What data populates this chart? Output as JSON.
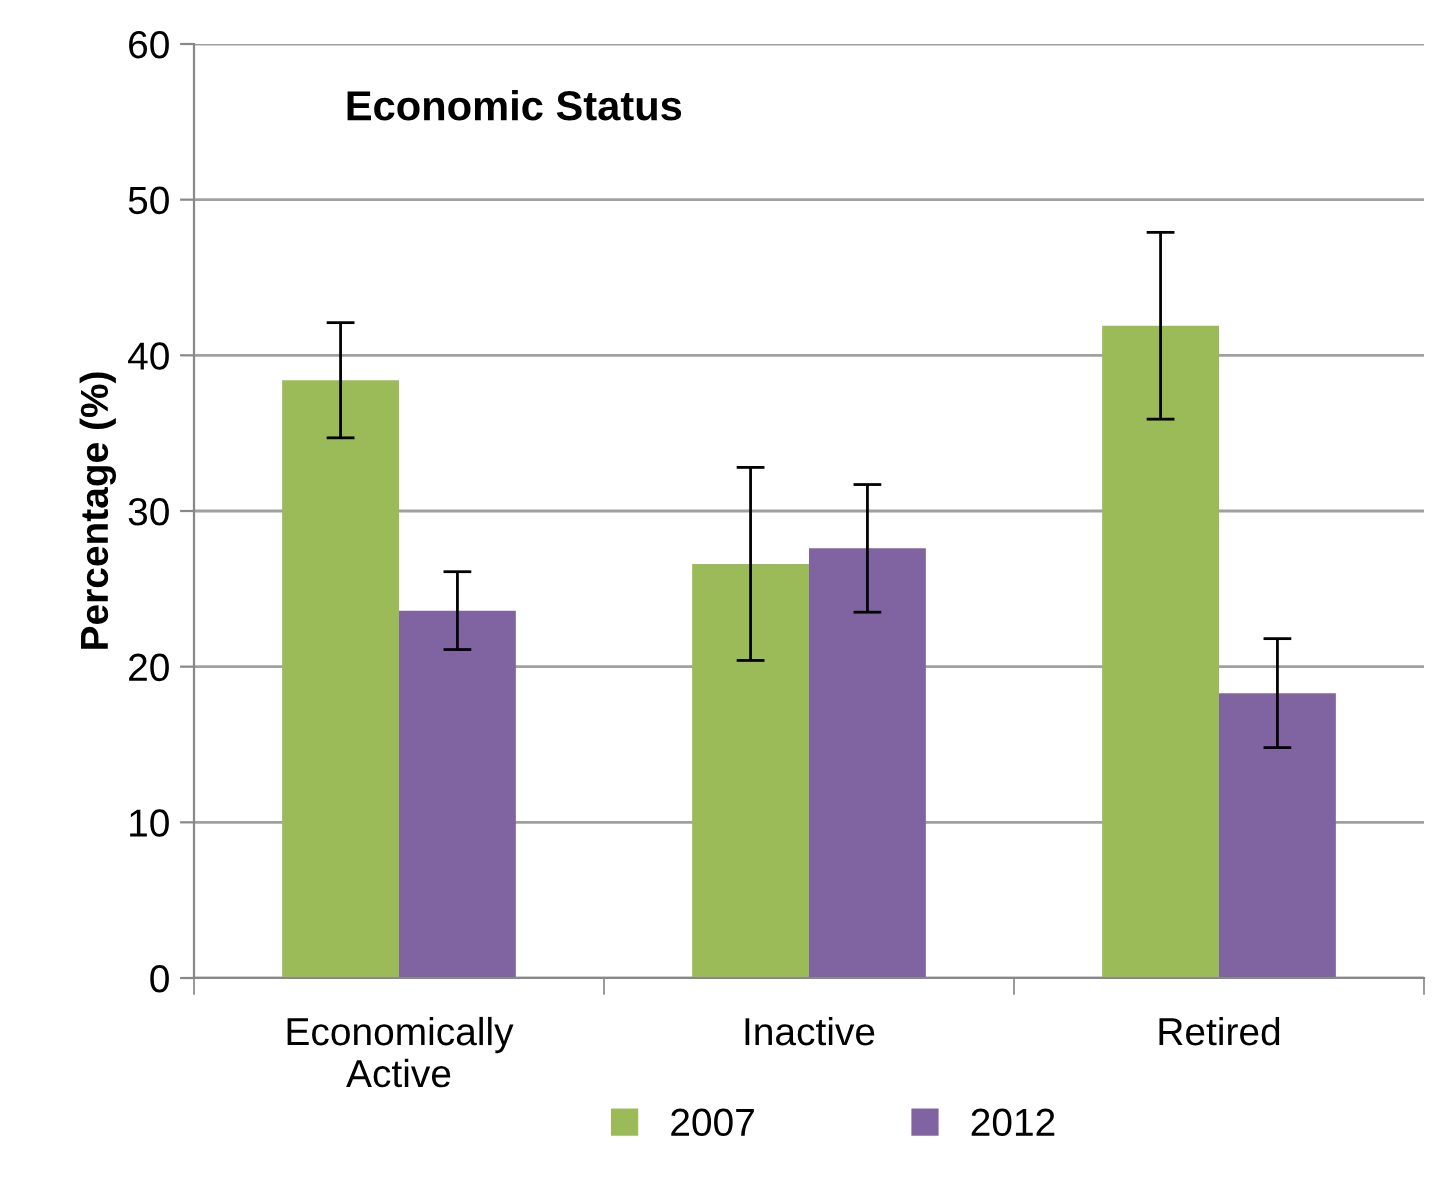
{
  "chart_data": {
    "type": "bar",
    "title": "Economic Status",
    "ylabel": "Percentage (%)",
    "categories": [
      "Economically\nActive",
      "Inactive",
      "Retired"
    ],
    "series": [
      {
        "name": "2007",
        "color": "#9bbb59",
        "values": [
          38.4,
          26.6,
          41.9
        ],
        "errors": [
          3.7,
          6.2,
          6.0
        ]
      },
      {
        "name": "2012",
        "color": "#8064a2",
        "values": [
          23.6,
          27.6,
          18.3
        ],
        "errors": [
          2.5,
          4.1,
          3.5
        ]
      }
    ],
    "ylim": [
      0,
      60
    ],
    "yticks": [
      0,
      10,
      20,
      30,
      40,
      50,
      60
    ],
    "grid": "y",
    "legend": "bottom"
  }
}
